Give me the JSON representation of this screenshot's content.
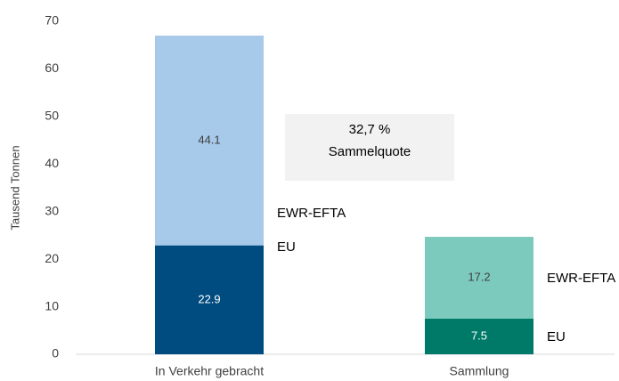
{
  "chart_data": {
    "type": "stacked_bar",
    "ylabel": "Tausend Tonnen",
    "categories": [
      "In Verkehr gebracht",
      "Sammlung"
    ],
    "series": [
      {
        "name": "EU",
        "colors": [
          "#004b7f",
          "#007a68"
        ],
        "values": [
          22.9,
          7.5
        ]
      },
      {
        "name": "EWR-EFTA",
        "colors": [
          "#a7c9ea",
          "#7ccabd"
        ],
        "values": [
          44.1,
          17.2
        ]
      }
    ],
    "annotation": [
      "32,7 %",
      "Sammelquote"
    ],
    "ylim": [
      0,
      70
    ],
    "yticks": [
      0,
      10,
      20,
      30,
      40,
      50,
      60,
      70
    ],
    "grid": false
  }
}
